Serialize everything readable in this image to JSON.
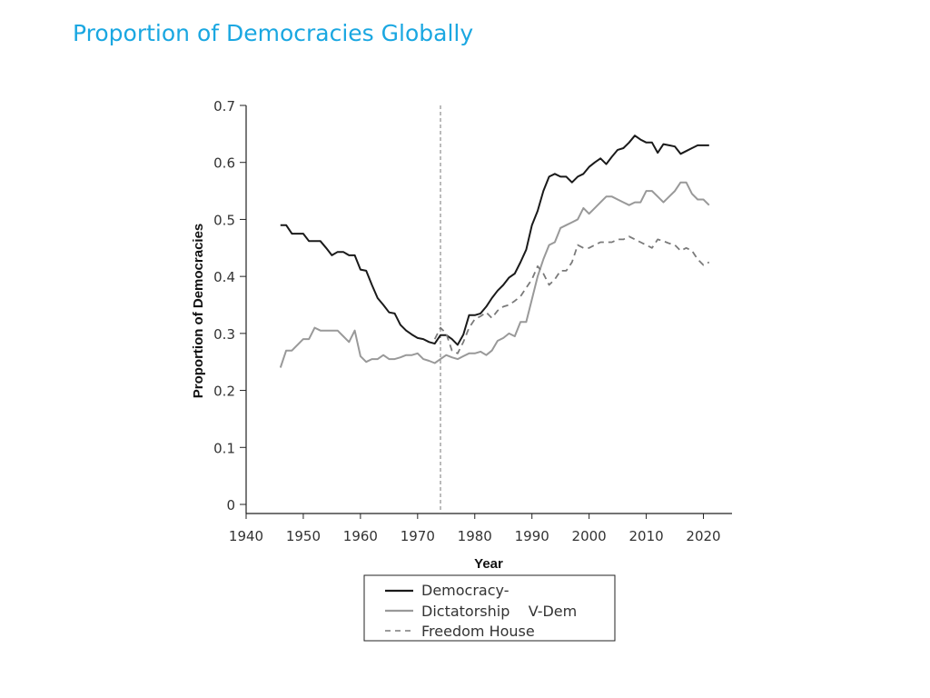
{
  "title": "Proportion of Democracies Globally",
  "chart_data": {
    "type": "line",
    "xlabel": "Year",
    "ylabel": "Proportion of Democracies",
    "xlim": [
      1940,
      2025
    ],
    "ylim": [
      0,
      0.7
    ],
    "xticks": [
      "1940",
      "1950",
      "1960",
      "1970",
      "1980",
      "1990",
      "2000",
      "2010",
      "2020"
    ],
    "yticks": [
      "0",
      "0.1",
      "0.2",
      "0.3",
      "0.4",
      "0.5",
      "0.6",
      "0.7"
    ],
    "vline_x": 1974,
    "grid": false,
    "legend_position": "bottom",
    "legend_lines": [
      "Democracy-",
      "Dictatorship    V-Dem",
      "Freedom House"
    ],
    "colors": {
      "democracy_dictatorship": "#1a1a1a",
      "vdem": "#999999",
      "freedom_house": "#7a7a7a"
    },
    "series": [
      {
        "key": "democracy_dictatorship",
        "x": [
          1946,
          1947,
          1948,
          1949,
          1950,
          1951,
          1952,
          1953,
          1954,
          1955,
          1956,
          1957,
          1958,
          1959,
          1960,
          1961,
          1962,
          1963,
          1964,
          1965,
          1966,
          1967,
          1968,
          1969,
          1970,
          1971,
          1972,
          1973,
          1974,
          1975,
          1976,
          1977,
          1978,
          1979,
          1980,
          1981,
          1982,
          1983,
          1984,
          1985,
          1986,
          1987,
          1988,
          1989,
          1990,
          1991,
          1992,
          1993,
          1994,
          1995,
          1996,
          1997,
          1998,
          1999,
          2000,
          2001,
          2002,
          2003,
          2004,
          2005,
          2006,
          2007,
          2008,
          2009,
          2010,
          2011,
          2012,
          2013,
          2014,
          2015,
          2016,
          2017,
          2018,
          2019,
          2020,
          2021
        ],
        "y": [
          0.49,
          0.49,
          0.475,
          0.475,
          0.475,
          0.462,
          0.462,
          0.462,
          0.45,
          0.437,
          0.443,
          0.443,
          0.437,
          0.437,
          0.412,
          0.41,
          0.385,
          0.362,
          0.35,
          0.337,
          0.335,
          0.315,
          0.305,
          0.298,
          0.292,
          0.29,
          0.285,
          0.282,
          0.297,
          0.297,
          0.29,
          0.28,
          0.298,
          0.332,
          0.332,
          0.335,
          0.347,
          0.362,
          0.375,
          0.385,
          0.398,
          0.405,
          0.425,
          0.447,
          0.49,
          0.515,
          0.55,
          0.575,
          0.58,
          0.575,
          0.575,
          0.565,
          0.575,
          0.58,
          0.592,
          0.6,
          0.607,
          0.597,
          0.61,
          0.622,
          0.625,
          0.635,
          0.647,
          0.64,
          0.635,
          0.635,
          0.617,
          0.632,
          0.63,
          0.628,
          0.615,
          0.62,
          0.625,
          0.63,
          0.63,
          0.63
        ]
      },
      {
        "key": "vdem",
        "x": [
          1946,
          1947,
          1948,
          1949,
          1950,
          1951,
          1952,
          1953,
          1954,
          1955,
          1956,
          1957,
          1958,
          1959,
          1960,
          1961,
          1962,
          1963,
          1964,
          1965,
          1966,
          1967,
          1968,
          1969,
          1970,
          1971,
          1972,
          1973,
          1974,
          1975,
          1976,
          1977,
          1978,
          1979,
          1980,
          1981,
          1982,
          1983,
          1984,
          1985,
          1986,
          1987,
          1988,
          1989,
          1990,
          1991,
          1992,
          1993,
          1994,
          1995,
          1996,
          1997,
          1998,
          1999,
          2000,
          2001,
          2002,
          2003,
          2004,
          2005,
          2006,
          2007,
          2008,
          2009,
          2010,
          2011,
          2012,
          2013,
          2014,
          2015,
          2016,
          2017,
          2018,
          2019,
          2020,
          2021
        ],
        "y": [
          0.24,
          0.27,
          0.27,
          0.28,
          0.29,
          0.29,
          0.31,
          0.305,
          0.305,
          0.305,
          0.305,
          0.295,
          0.285,
          0.305,
          0.26,
          0.25,
          0.255,
          0.255,
          0.262,
          0.255,
          0.255,
          0.258,
          0.262,
          0.262,
          0.265,
          0.255,
          0.252,
          0.248,
          0.255,
          0.262,
          0.258,
          0.255,
          0.26,
          0.265,
          0.265,
          0.268,
          0.262,
          0.27,
          0.287,
          0.292,
          0.3,
          0.295,
          0.32,
          0.32,
          0.36,
          0.4,
          0.43,
          0.455,
          0.46,
          0.485,
          0.49,
          0.495,
          0.5,
          0.52,
          0.51,
          0.52,
          0.53,
          0.54,
          0.54,
          0.535,
          0.53,
          0.525,
          0.53,
          0.53,
          0.55,
          0.55,
          0.54,
          0.53,
          0.54,
          0.55,
          0.565,
          0.565,
          0.545,
          0.535,
          0.535,
          0.525
        ]
      },
      {
        "key": "freedom_house",
        "x": [
          1973,
          1974,
          1975,
          1976,
          1977,
          1978,
          1979,
          1980,
          1981,
          1982,
          1983,
          1984,
          1985,
          1986,
          1987,
          1988,
          1989,
          1990,
          1991,
          1992,
          1993,
          1994,
          1995,
          1996,
          1997,
          1998,
          1999,
          2000,
          2001,
          2002,
          2003,
          2004,
          2005,
          2006,
          2007,
          2008,
          2009,
          2010,
          2011,
          2012,
          2013,
          2014,
          2015,
          2016,
          2017,
          2018,
          2019,
          2020,
          2021
        ],
        "y": [
          0.29,
          0.31,
          0.3,
          0.27,
          0.265,
          0.285,
          0.31,
          0.325,
          0.33,
          0.337,
          0.327,
          0.34,
          0.347,
          0.35,
          0.357,
          0.365,
          0.38,
          0.395,
          0.418,
          0.405,
          0.385,
          0.395,
          0.41,
          0.41,
          0.425,
          0.455,
          0.45,
          0.45,
          0.455,
          0.46,
          0.46,
          0.46,
          0.465,
          0.465,
          0.47,
          0.465,
          0.46,
          0.455,
          0.45,
          0.465,
          0.462,
          0.458,
          0.455,
          0.445,
          0.45,
          0.445,
          0.43,
          0.42,
          0.425
        ]
      }
    ]
  }
}
